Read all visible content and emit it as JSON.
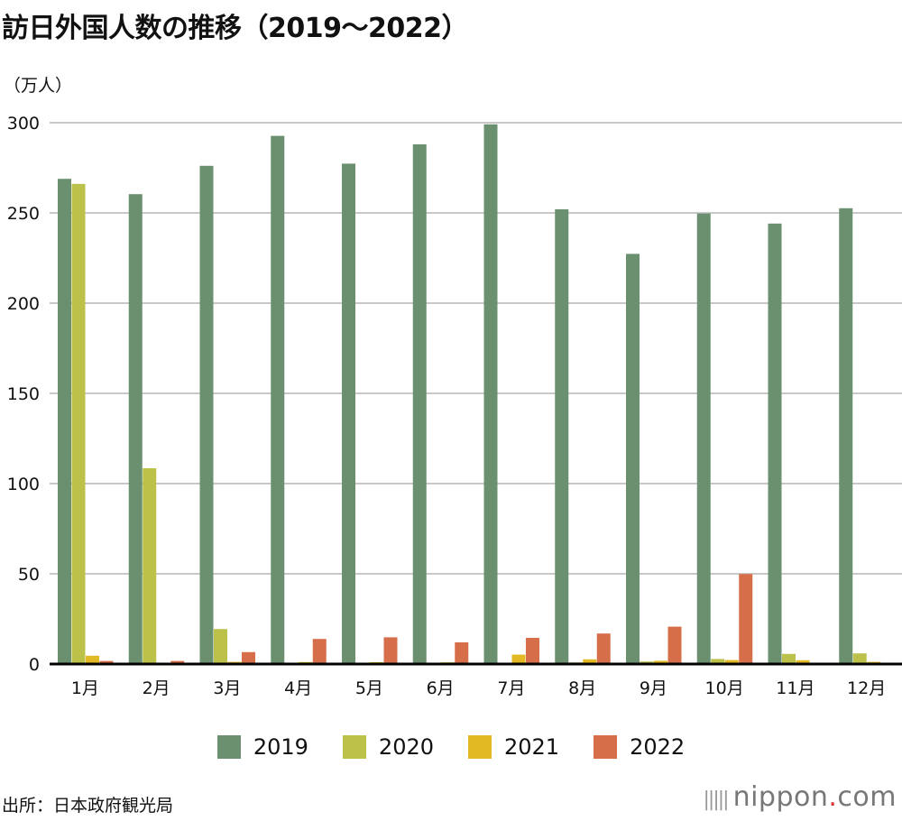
{
  "title": "訪日外国人数の推移（2019〜2022）",
  "source": "出所：日本政府観光局",
  "logo": {
    "text": "nippon",
    "dot": ".",
    "suffix": "com"
  },
  "chart_data": {
    "type": "bar",
    "title": "訪日外国人数の推移（2019〜2022）",
    "ylabel": "（万人）",
    "xlabel": "",
    "ylim": [
      0,
      300
    ],
    "yticks": [
      0,
      50,
      100,
      150,
      200,
      250,
      300
    ],
    "grid": true,
    "legend_position": "bottom",
    "categories": [
      "1月",
      "2月",
      "3月",
      "4月",
      "5月",
      "6月",
      "7月",
      "8月",
      "9月",
      "10月",
      "11月",
      "12月"
    ],
    "series": [
      {
        "name": "2019",
        "color": "#6a9070",
        "values": [
          268.9,
          260.4,
          276.1,
          292.7,
          277.3,
          288.0,
          299.1,
          252.0,
          227.3,
          249.7,
          244.1,
          252.6
        ]
      },
      {
        "name": "2020",
        "color": "#bcc14a",
        "values": [
          266.1,
          108.5,
          19.4,
          0.3,
          0.2,
          0.3,
          0.4,
          0.9,
          1.4,
          2.8,
          5.6,
          5.9
        ]
      },
      {
        "name": "2021",
        "color": "#e2b823",
        "values": [
          4.6,
          0.7,
          1.2,
          1.1,
          1.0,
          0.9,
          5.2,
          2.6,
          1.8,
          2.2,
          2.1,
          1.2
        ]
      },
      {
        "name": "2022",
        "color": "#d76e4a",
        "values": [
          1.7,
          1.7,
          6.6,
          13.9,
          14.8,
          12.0,
          14.5,
          16.9,
          20.7,
          49.9,
          null,
          null
        ]
      }
    ]
  }
}
